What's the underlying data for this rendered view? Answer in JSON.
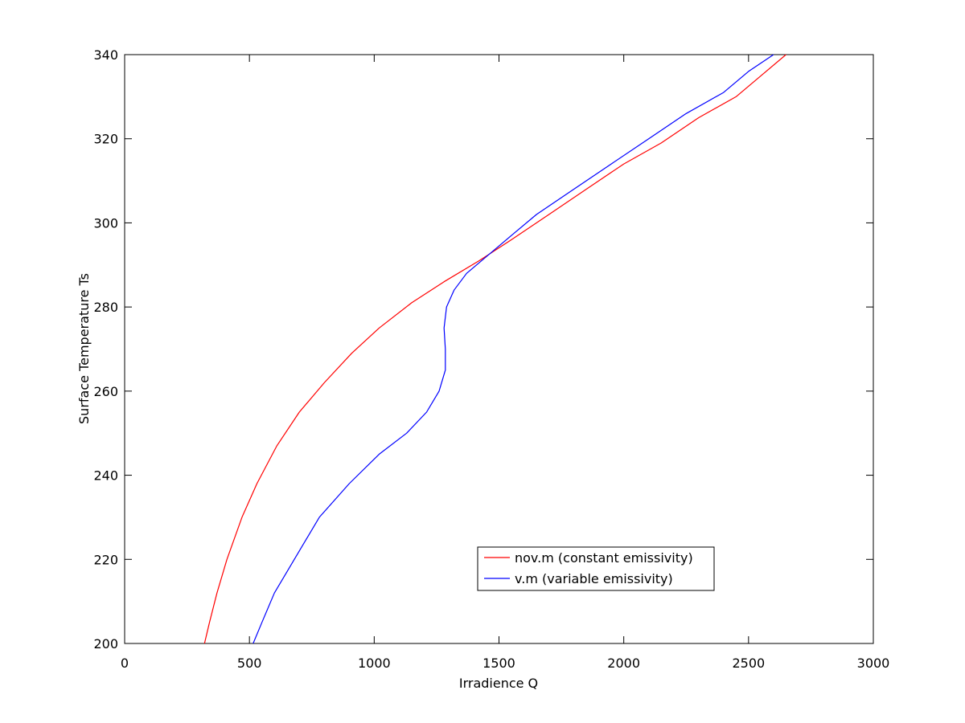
{
  "chart_data": {
    "type": "line",
    "title": "",
    "xlabel": "Irradience Q",
    "ylabel": "Surface Temperature Ts",
    "xlim": [
      0,
      3000
    ],
    "ylim": [
      200,
      340
    ],
    "xticks": [
      0,
      500,
      1000,
      1500,
      2000,
      2500,
      3000
    ],
    "yticks": [
      200,
      220,
      240,
      260,
      280,
      300,
      320,
      340
    ],
    "grid": false,
    "legend_position": "lower-right",
    "series": [
      {
        "name": "nov.m (constant emissivity)",
        "color": "#ff0000",
        "points": [
          [
            320,
            200
          ],
          [
            340,
            205
          ],
          [
            370,
            212
          ],
          [
            410,
            220
          ],
          [
            470,
            230
          ],
          [
            530,
            238
          ],
          [
            610,
            247
          ],
          [
            700,
            255
          ],
          [
            800,
            262
          ],
          [
            910,
            269
          ],
          [
            1020,
            275
          ],
          [
            1150,
            281
          ],
          [
            1280,
            286
          ],
          [
            1420,
            291
          ],
          [
            1550,
            296
          ],
          [
            1700,
            302
          ],
          [
            1850,
            308
          ],
          [
            2000,
            314
          ],
          [
            2150,
            319
          ],
          [
            2300,
            325
          ],
          [
            2450,
            330
          ],
          [
            2550,
            335
          ],
          [
            2650,
            340
          ]
        ]
      },
      {
        "name": "v.m (variable emissivity)",
        "color": "#0000ff",
        "points": [
          [
            515,
            200
          ],
          [
            550,
            205
          ],
          [
            600,
            212
          ],
          [
            680,
            220
          ],
          [
            780,
            230
          ],
          [
            900,
            238
          ],
          [
            1020,
            245
          ],
          [
            1130,
            250
          ],
          [
            1210,
            255
          ],
          [
            1260,
            260
          ],
          [
            1285,
            265
          ],
          [
            1285,
            270
          ],
          [
            1280,
            275
          ],
          [
            1290,
            280
          ],
          [
            1320,
            284
          ],
          [
            1370,
            288
          ],
          [
            1450,
            292
          ],
          [
            1550,
            297
          ],
          [
            1650,
            302
          ],
          [
            1800,
            308
          ],
          [
            1950,
            314
          ],
          [
            2100,
            320
          ],
          [
            2250,
            326
          ],
          [
            2400,
            331
          ],
          [
            2500,
            336
          ],
          [
            2600,
            340
          ]
        ]
      }
    ]
  }
}
